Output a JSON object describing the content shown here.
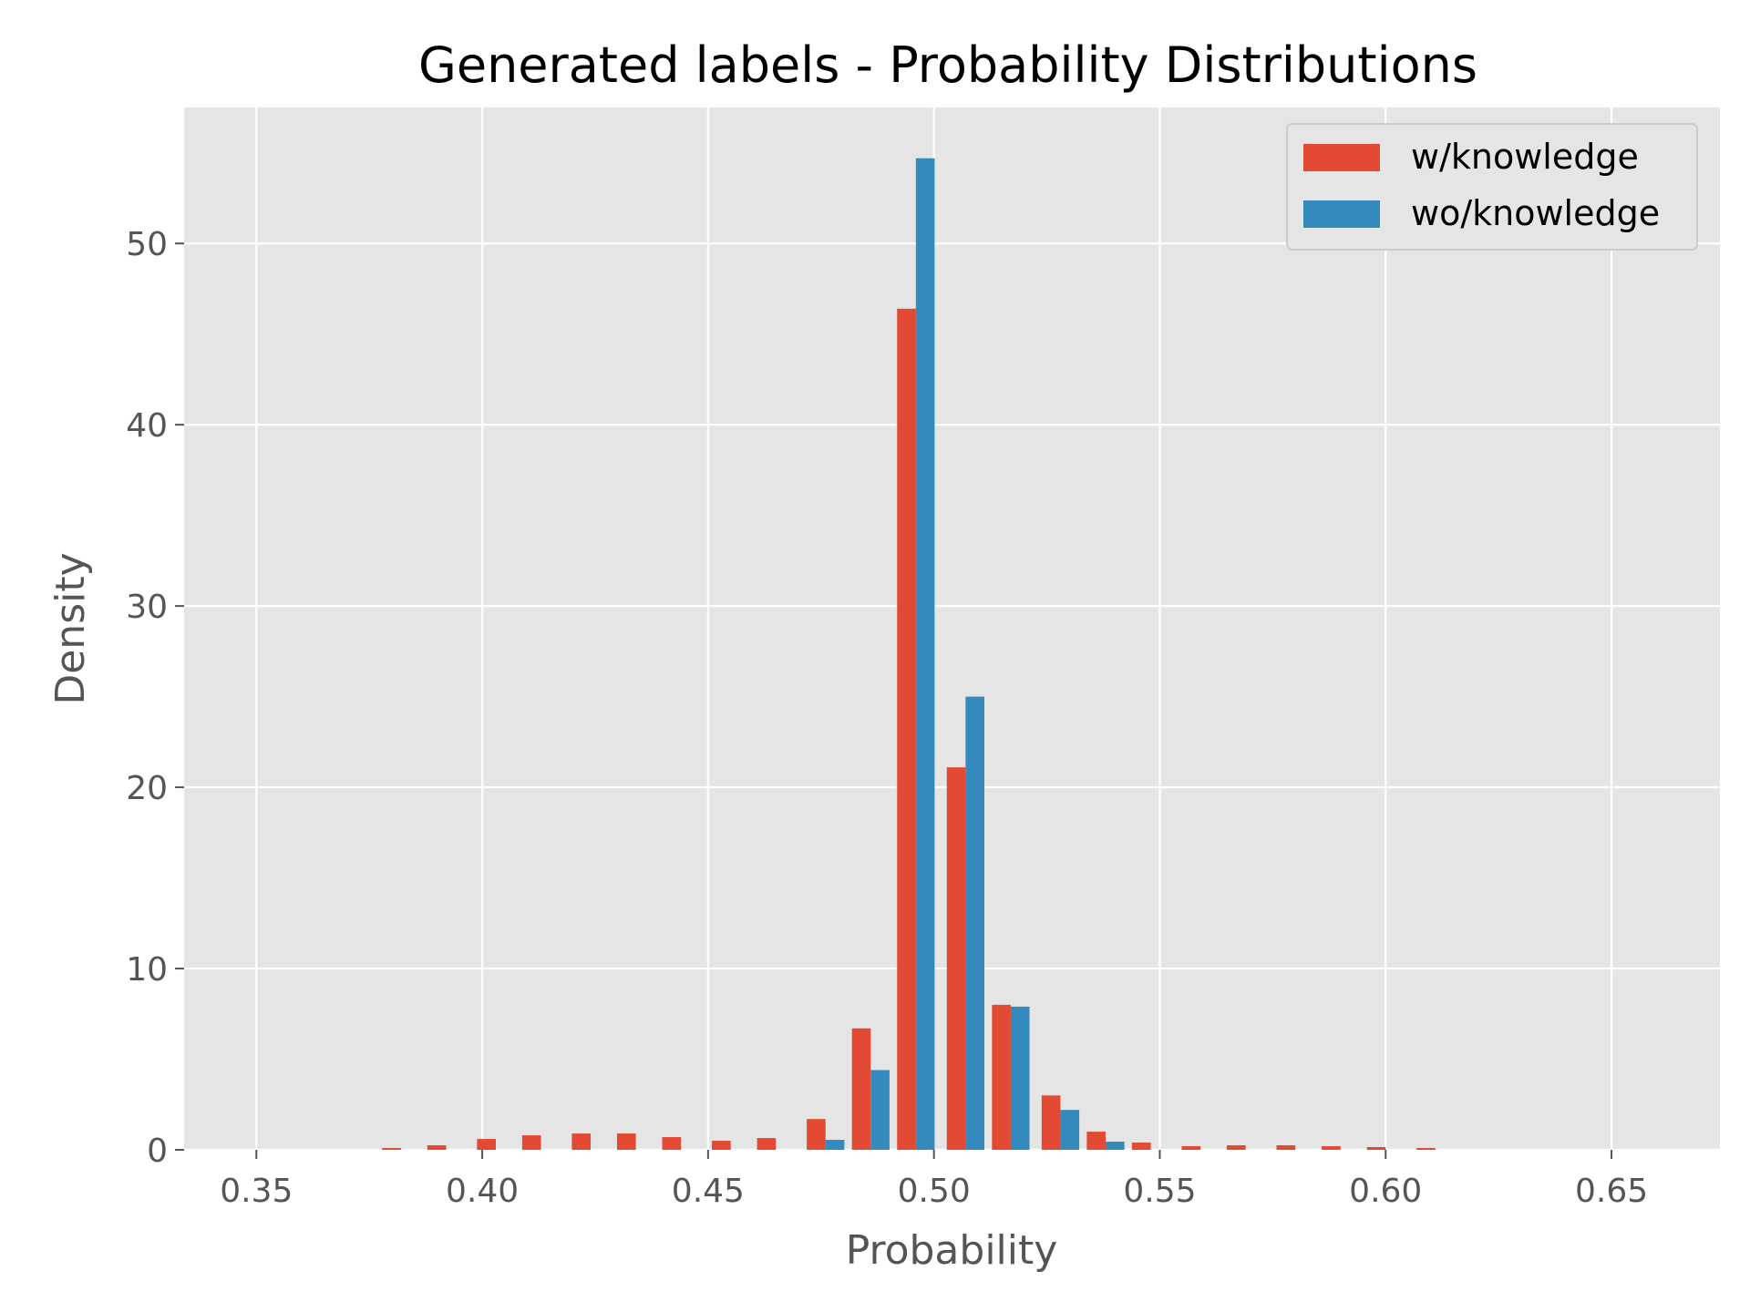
{
  "chart_data": {
    "type": "bar",
    "title": "Generated labels - Probability Distributions",
    "xlabel": "Probability",
    "ylabel": "Density",
    "xlim": [
      0.334,
      0.674
    ],
    "ylim": [
      0,
      57.5
    ],
    "xticks": [
      0.35,
      0.4,
      0.45,
      0.5,
      0.55,
      0.6,
      0.65
    ],
    "xtick_labels": [
      "0.35",
      "0.40",
      "0.45",
      "0.50",
      "0.55",
      "0.60",
      "0.65"
    ],
    "yticks": [
      0,
      10,
      20,
      30,
      40,
      50
    ],
    "ytick_labels": [
      "0",
      "10",
      "20",
      "30",
      "40",
      "50"
    ],
    "grid": true,
    "legend_position": "top-right",
    "bin_width": 0.0104,
    "series": [
      {
        "name": "w/knowledge",
        "color": "#E24A33",
        "x": [
          0.382,
          0.392,
          0.403,
          0.413,
          0.424,
          0.434,
          0.444,
          0.455,
          0.465,
          0.476,
          0.486,
          0.496,
          0.507,
          0.517,
          0.528,
          0.538,
          0.548,
          0.559,
          0.569,
          0.58,
          0.59,
          0.6,
          0.611
        ],
        "values": [
          0.1,
          0.25,
          0.6,
          0.8,
          0.9,
          0.9,
          0.7,
          0.5,
          0.65,
          1.7,
          6.7,
          46.4,
          21.1,
          8.0,
          3.0,
          1.0,
          0.4,
          0.2,
          0.25,
          0.25,
          0.2,
          0.15,
          0.1
        ]
      },
      {
        "name": "wo/knowledge",
        "color": "#348ABD",
        "x": [
          0.382,
          0.392,
          0.403,
          0.413,
          0.424,
          0.434,
          0.444,
          0.455,
          0.465,
          0.476,
          0.486,
          0.496,
          0.507,
          0.517,
          0.528,
          0.538,
          0.548,
          0.559,
          0.569,
          0.58,
          0.59,
          0.6,
          0.611
        ],
        "values": [
          0,
          0,
          0,
          0,
          0,
          0,
          0,
          0,
          0,
          0.55,
          4.4,
          54.7,
          25.0,
          7.9,
          2.2,
          0.45,
          0,
          0,
          0,
          0,
          0,
          0,
          0
        ]
      }
    ]
  }
}
